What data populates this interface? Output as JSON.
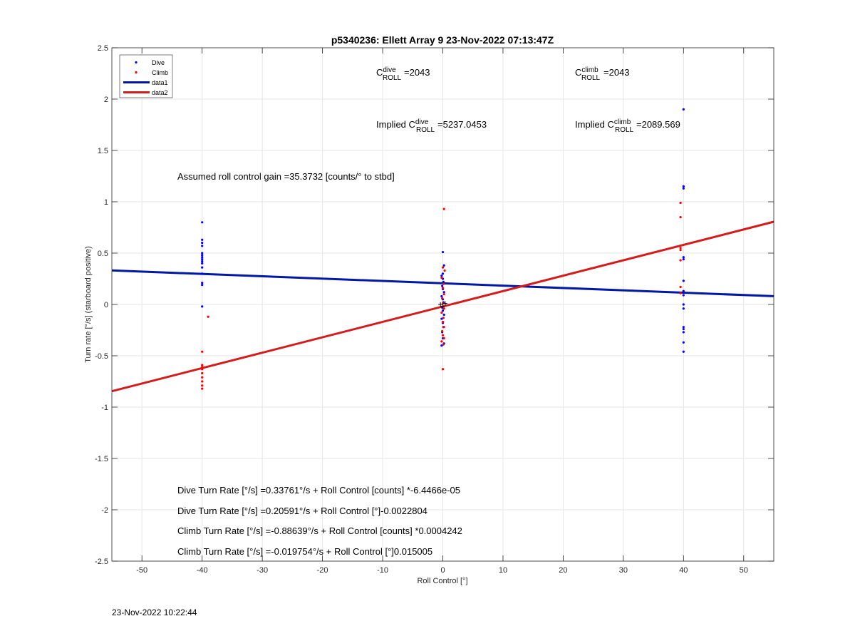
{
  "chart_data": {
    "type": "scatter",
    "title": "p5340236: Ellett Array 9 23-Nov-2022 07:13:47Z",
    "xlabel": "Roll Control [°]",
    "ylabel": "Turn rate [°/s] (starboard positive)",
    "xlim": [
      -55,
      55
    ],
    "ylim": [
      -2.5,
      2.5
    ],
    "xticks": [
      -50,
      -40,
      -30,
      -20,
      -10,
      0,
      10,
      20,
      30,
      40,
      50
    ],
    "yticks": [
      -2.5,
      -2,
      -1.5,
      -1,
      -0.5,
      0,
      0.5,
      1,
      1.5,
      2,
      2.5
    ],
    "grid": true,
    "legend_position": "top-left",
    "legend": [
      {
        "label": "Dive",
        "kind": "marker",
        "color": "#0000ff"
      },
      {
        "label": "Climb",
        "kind": "marker",
        "color": "#ff0000"
      },
      {
        "label": "data1",
        "kind": "line",
        "color": "#0018a8"
      },
      {
        "label": "data2",
        "kind": "line",
        "color": "#d41c1c"
      }
    ],
    "series": [
      {
        "name": "Dive",
        "kind": "scatter",
        "color": "#0000ff",
        "points": [
          [
            -40,
            0.8
          ],
          [
            -40,
            0.63
          ],
          [
            -40,
            0.6
          ],
          [
            -40,
            0.57
          ],
          [
            -40,
            0.5
          ],
          [
            -40,
            0.48
          ],
          [
            -40,
            0.46
          ],
          [
            -40,
            0.44
          ],
          [
            -40,
            0.42
          ],
          [
            -40,
            0.4
          ],
          [
            -40,
            0.36
          ],
          [
            -40,
            0.3
          ],
          [
            -40,
            0.21
          ],
          [
            -40,
            0.19
          ],
          [
            -40,
            -0.02
          ],
          [
            0,
            0.51
          ],
          [
            0.2,
            0.38
          ],
          [
            0,
            0.3
          ],
          [
            -0.2,
            0.28
          ],
          [
            0,
            0.25
          ],
          [
            0.1,
            0.22
          ],
          [
            -0.1,
            0.18
          ],
          [
            0,
            0.15
          ],
          [
            0.2,
            0.12
          ],
          [
            -0.2,
            0.08
          ],
          [
            0,
            0.05
          ],
          [
            0.1,
            0.02
          ],
          [
            -0.1,
            -0.03
          ],
          [
            0,
            -0.06
          ],
          [
            0.2,
            -0.1
          ],
          [
            -0.2,
            -0.14
          ],
          [
            0,
            -0.18
          ],
          [
            0.1,
            -0.22
          ],
          [
            -0.1,
            -0.27
          ],
          [
            0,
            -0.33
          ],
          [
            0.2,
            -0.38
          ],
          [
            -0.2,
            -0.4
          ],
          [
            40,
            1.9
          ],
          [
            40,
            1.15
          ],
          [
            40,
            1.13
          ],
          [
            40,
            0.46
          ],
          [
            40,
            0.44
          ],
          [
            40,
            0.23
          ],
          [
            40,
            0.13
          ],
          [
            40,
            0.09
          ],
          [
            40,
            0.0
          ],
          [
            40,
            -0.04
          ],
          [
            40,
            -0.22
          ],
          [
            40,
            -0.24
          ],
          [
            40,
            -0.27
          ],
          [
            40,
            -0.37
          ],
          [
            40,
            -0.46
          ]
        ]
      },
      {
        "name": "Climb",
        "kind": "scatter",
        "color": "#ff0000",
        "points": [
          [
            -39,
            -0.12
          ],
          [
            -40,
            -0.46
          ],
          [
            -40,
            -0.59
          ],
          [
            -40,
            -0.61
          ],
          [
            -40,
            -0.63
          ],
          [
            -40,
            -0.67
          ],
          [
            -40,
            -0.71
          ],
          [
            -40,
            -0.75
          ],
          [
            -40,
            -0.79
          ],
          [
            -40,
            -0.82
          ],
          [
            0.2,
            0.93
          ],
          [
            0,
            0.36
          ],
          [
            0.3,
            0.33
          ],
          [
            -0.2,
            0.26
          ],
          [
            0.1,
            0.2
          ],
          [
            0,
            0.16
          ],
          [
            0.2,
            0.1
          ],
          [
            -0.1,
            0.06
          ],
          [
            0,
            0.01
          ],
          [
            0.2,
            -0.04
          ],
          [
            -0.2,
            -0.08
          ],
          [
            0.1,
            -0.13
          ],
          [
            0,
            -0.17
          ],
          [
            0.2,
            -0.22
          ],
          [
            -0.1,
            -0.26
          ],
          [
            0,
            -0.3
          ],
          [
            0.2,
            -0.33
          ],
          [
            -0.2,
            -0.36
          ],
          [
            0.1,
            -0.39
          ],
          [
            0,
            -0.63
          ],
          [
            39.5,
            0.99
          ],
          [
            39.5,
            0.85
          ],
          [
            39.5,
            0.55
          ],
          [
            39.5,
            0.53
          ],
          [
            39.5,
            0.43
          ],
          [
            39.5,
            0.17
          ],
          [
            39.5,
            0.11
          ]
        ]
      },
      {
        "name": "data1",
        "kind": "line",
        "color": "#0018a8",
        "intercept": 0.20591,
        "slope": -0.0022804
      },
      {
        "name": "data2",
        "kind": "line",
        "color": "#d41c1c",
        "intercept": -0.019754,
        "slope": 0.015005
      }
    ],
    "annotations": {
      "c_dive": {
        "base": "C",
        "sup": "dive",
        "sub": "ROLL",
        "value": "=2043"
      },
      "c_climb": {
        "base": "C",
        "sup": "climb",
        "sub": "ROLL",
        "value": "=2043"
      },
      "implied_dive": {
        "prefix": "Implied C",
        "sup": "dive",
        "sub": "ROLL",
        "value": "=5237.0453"
      },
      "implied_climb": {
        "prefix": "Implied C",
        "sup": "climb",
        "sub": "ROLL",
        "value": "=2089.569"
      },
      "gain": "Assumed roll control gain =35.3732 [counts/° to stbd]",
      "eq1": "Dive Turn Rate [°/s] =0.33761°/s + Roll Control [counts] *-6.4466e-05",
      "eq2": "Dive Turn Rate [°/s] =0.20591°/s + Roll Control [°]-0.0022804",
      "eq3": "Climb Turn Rate [°/s] =-0.88639°/s + Roll Control [counts] *0.0004242",
      "eq4": "Climb Turn Rate [°/s] =-0.019754°/s + Roll Control [°]0.015005"
    }
  },
  "footer_timestamp": "23-Nov-2022 10:22:44"
}
